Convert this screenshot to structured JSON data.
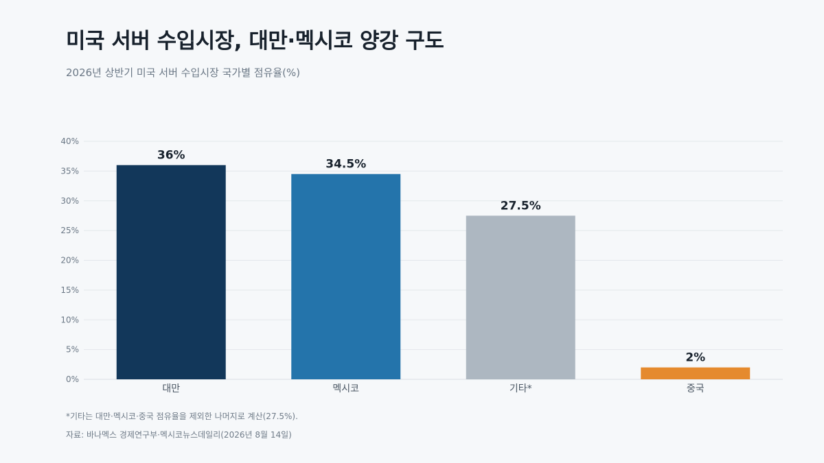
{
  "title": "미국 서버 수입시장, 대만·멕시코 양강 구도",
  "subtitle": "2026년 상반기 미국 서버 수입시장 국가별 점유율(%)",
  "chart_data": {
    "type": "bar",
    "categories": [
      "대만",
      "멕시코",
      "기타*",
      "중국"
    ],
    "values": [
      36,
      34.5,
      27.5,
      2
    ],
    "value_labels": [
      "36%",
      "34.5%",
      "27.5%",
      "2%"
    ],
    "bar_colors": [
      "#12375a",
      "#2474ab",
      "#adb7c1",
      "#e58a2e"
    ],
    "ylim": [
      0,
      40
    ],
    "yticks": [
      0,
      5,
      10,
      15,
      20,
      25,
      30,
      35,
      40
    ],
    "ytick_labels": [
      "0%",
      "5%",
      "10%",
      "15%",
      "20%",
      "25%",
      "30%",
      "35%",
      "40%"
    ],
    "grid": true,
    "legend": "none",
    "xlabel": "",
    "ylabel": ""
  },
  "notes": {
    "footnote": "*기타는 대만·멕시코·중국 점유율을 제외한 나머지로 계산(27.5%).",
    "source": "자료: 바나멕스 경제연구부·멕시코뉴스데일리(2026년 8월 14일)"
  }
}
